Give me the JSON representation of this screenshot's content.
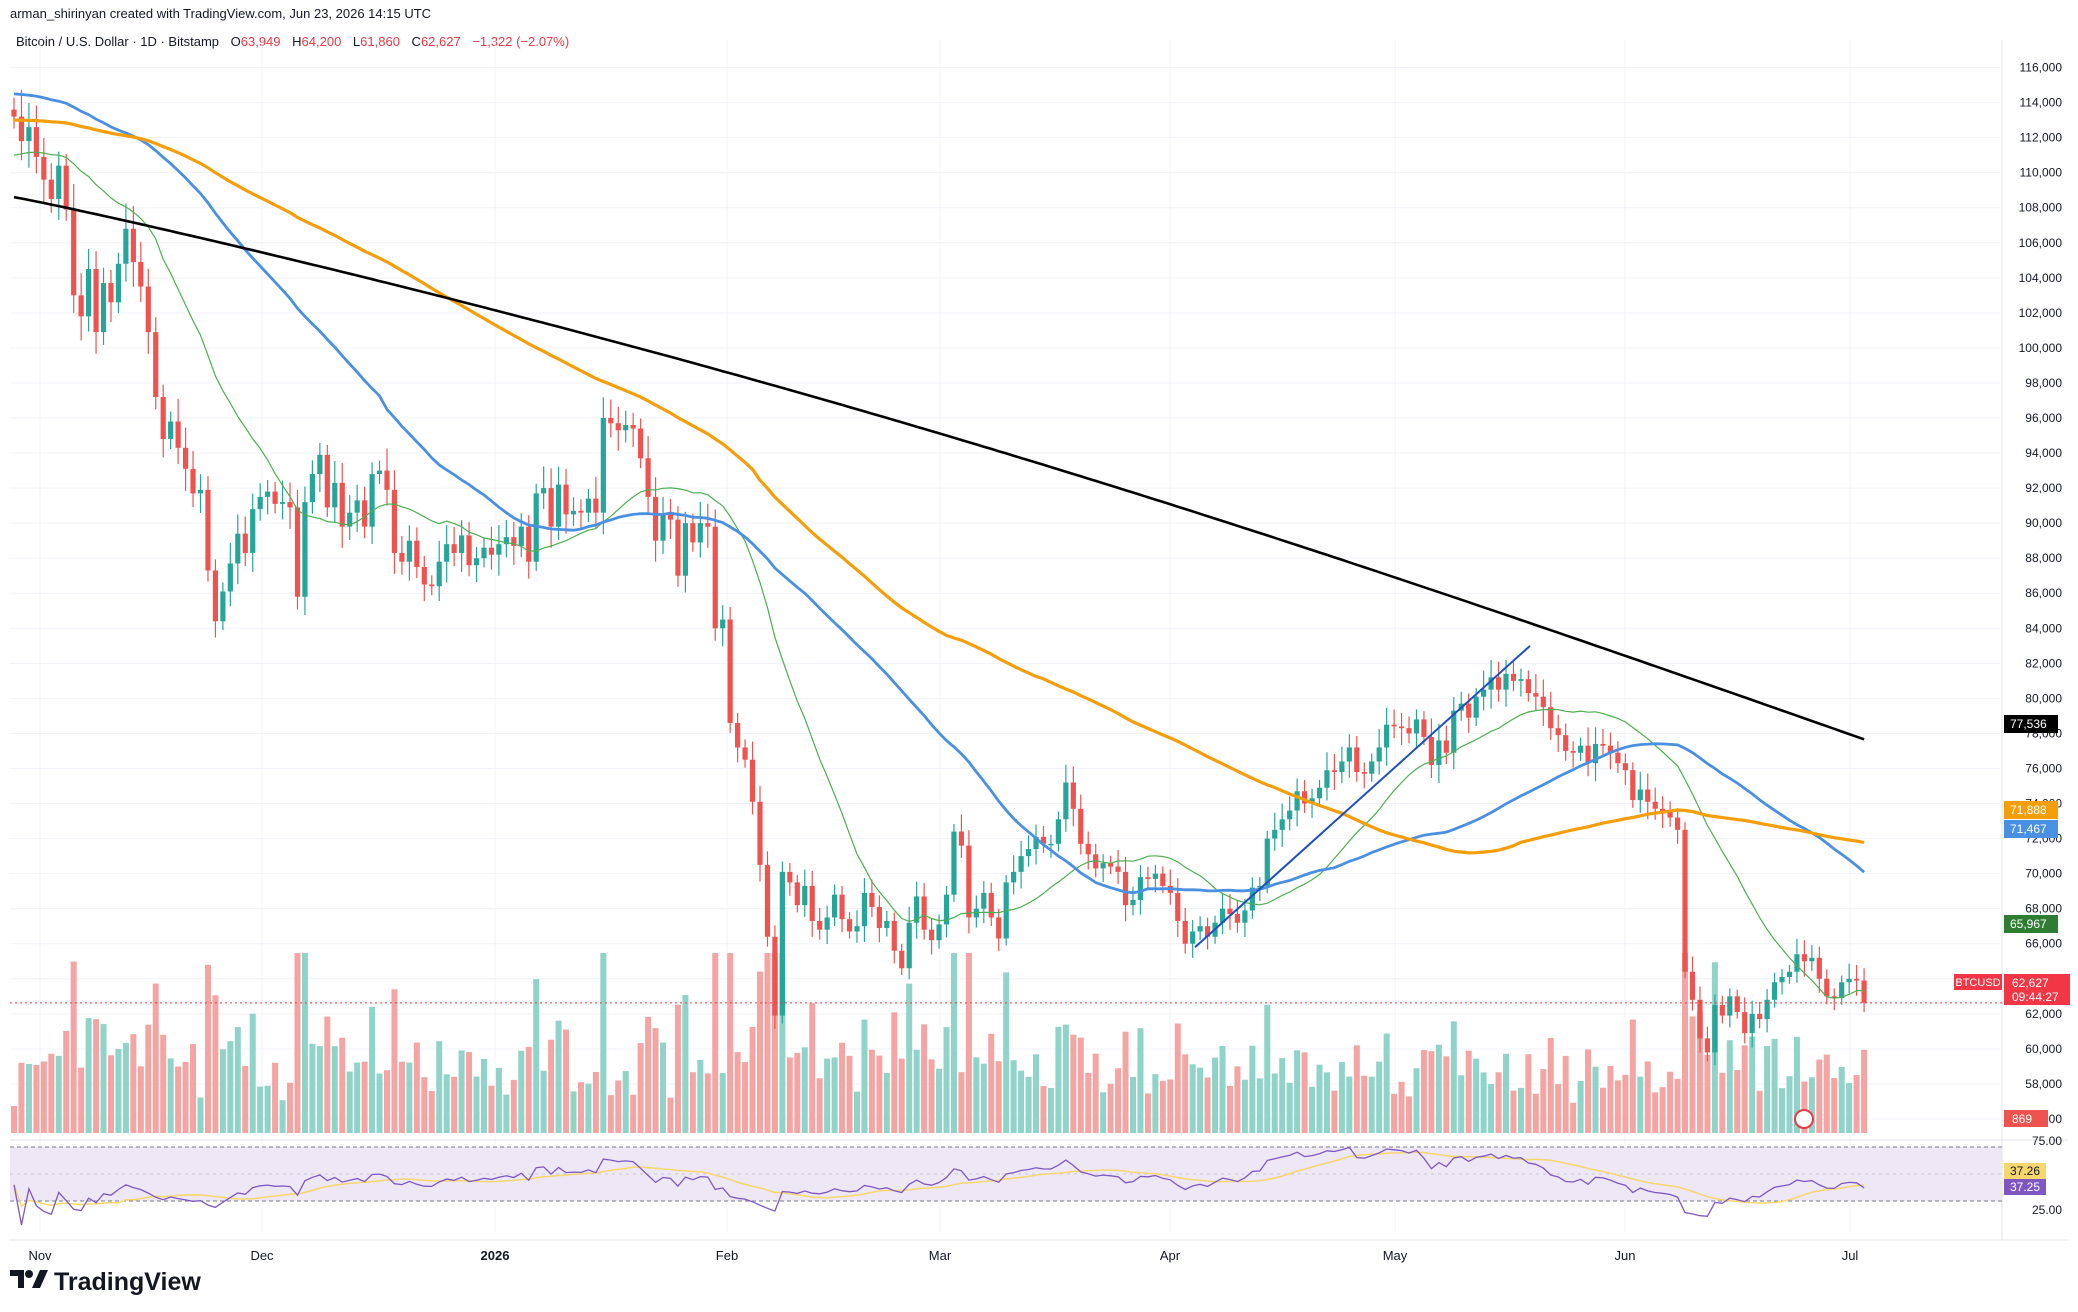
{
  "credit": "arman_shirinyan created with TradingView.com, Jun 23, 2026 14:15 UTC",
  "legend": {
    "symbol": "Bitcoin / U.S. Dollar · 1D · Bitstamp",
    "o_label": "O",
    "o_value": "63,949",
    "h_label": "H",
    "h_value": "64,200",
    "l_label": "L",
    "l_value": "61,860",
    "c_label": "C",
    "c_value": "62,627",
    "change": "−1,322 (−2.07%)"
  },
  "branding": "TradingView",
  "colors": {
    "up": "#26a69a",
    "down": "#ef5350",
    "vol_up": "#8fd3c9",
    "vol_down": "#f4a5a3",
    "ma_fast": "#4caf50",
    "ma_mid": "#4a90e2",
    "ma_slow": "#f59e0b",
    "ma_long": "#000000",
    "trendline": "#1f4fbf",
    "rsi_line": "#7e57c2",
    "rsi_ma": "#f5d76e",
    "rsi_band": "#ede7f6"
  },
  "chart_data": {
    "type": "candlestick",
    "title": "Bitcoin / U.S. Dollar · 1D · Bitstamp",
    "y_axis": {
      "ticks": [
        "116,000",
        "114,000",
        "112,000",
        "110,000",
        "108,000",
        "106,000",
        "104,000",
        "102,000",
        "100,000",
        "98,000",
        "96,000",
        "94,000",
        "92,000",
        "90,000",
        "88,000",
        "86,000",
        "84,000",
        "82,000",
        "80,000",
        "78,000",
        "76,000",
        "74,000",
        "72,000",
        "70,000",
        "68,000",
        "66,000",
        "64,000",
        "62,000",
        "60,000",
        "58,000",
        "56,000"
      ],
      "ylim": [
        54800,
        117000
      ]
    },
    "x_axis": {
      "ticks": [
        "Nov",
        "Dec",
        "2026",
        "Feb",
        "Mar",
        "Apr",
        "May",
        "Jun",
        "Jul"
      ]
    },
    "price_labels": [
      {
        "name": "ma_long",
        "value": "77,536",
        "color": "#000000"
      },
      {
        "name": "ma_slow",
        "value": "71,888",
        "color": "#f59e0b"
      },
      {
        "name": "ma_mid",
        "value": "71,467",
        "color": "#4a90e2"
      },
      {
        "name": "ma_fast",
        "value": "65,967",
        "color": "#2e7d32"
      },
      {
        "name": "last",
        "symbol": "BTCUSD",
        "value": "62,627",
        "countdown": "09:44:27",
        "color": "#f23645"
      },
      {
        "name": "volume",
        "value": "869",
        "color": "#ef5350"
      }
    ],
    "rsi": {
      "levels": [
        "75.00",
        "25.00"
      ],
      "values": [
        "37.26",
        "37.25"
      ]
    },
    "series_close": [
      113200,
      111800,
      112600,
      110900,
      109600,
      108500,
      110400,
      107900,
      103000,
      101800,
      104500,
      100900,
      103700,
      102600,
      104800,
      106800,
      104900,
      103500,
      100900,
      97200,
      94800,
      95800,
      94300,
      93100,
      91700,
      91900,
      87300,
      84400,
      86100,
      87700,
      89400,
      88300,
      90800,
      91500,
      91800,
      91100,
      91200,
      90900,
      85800,
      91200,
      92800,
      93900,
      90900,
      92300,
      89800,
      90600,
      91300,
      89800,
      92800,
      93000,
      91900,
      88300,
      87800,
      89000,
      87500,
      86500,
      86400,
      87800,
      88800,
      88300,
      89300,
      87600,
      88000,
      88600,
      88200,
      88800,
      89200,
      88700,
      89800,
      87800,
      91700,
      92000,
      89800,
      92200,
      90500,
      90700,
      90600,
      91400,
      90600,
      96000,
      95700,
      95300,
      95600,
      95400,
      93700,
      91500,
      89000,
      90500,
      90200,
      87000,
      90000,
      88900,
      90000,
      89800,
      84000,
      84500,
      78600,
      77200,
      76500,
      74100,
      70500,
      66400,
      61900,
      70100,
      69500,
      68200,
      69300,
      67300,
      66800,
      67500,
      68800,
      67400,
      66700,
      67000,
      68900,
      68100,
      66900,
      67300,
      65600,
      64600,
      67200,
      68700,
      66800,
      66200,
      67100,
      68800,
      72400,
      71600,
      67500,
      68000,
      68900,
      67500,
      66300,
      69500,
      70100,
      71000,
      71400,
      72100,
      71700,
      71700,
      73100,
      75200,
      73700,
      71700,
      71100,
      70300,
      70600,
      70400,
      70100,
      68200,
      68500,
      69800,
      69700,
      70000,
      69300,
      68900,
      67300,
      66000,
      66700,
      67000,
      66400,
      67200,
      68000,
      67700,
      67200,
      67900,
      69200,
      69300,
      72000,
      72500,
      73100,
      73600,
      74700,
      74000,
      74300,
      74900,
      75900,
      75800,
      76400,
      77200,
      75800,
      75700,
      76400,
      77200,
      78500,
      78400,
      78300,
      78000,
      78800,
      77800,
      76200,
      77600,
      76900,
      79300,
      79700,
      78900,
      80100,
      80500,
      81200,
      80500,
      81400,
      81000,
      81100,
      80300,
      80100,
      79500,
      78300,
      77900,
      77000,
      76900,
      77300,
      76300,
      77400,
      77300,
      76900,
      76300,
      75900,
      74200,
      74800,
      74100,
      73700,
      73500,
      73200,
      72500,
      64400,
      62800,
      60600,
      59800,
      62500,
      61900,
      63000,
      62100,
      60900,
      62000,
      61700,
      62800,
      63800,
      64100,
      64400,
      65400,
      65000,
      65200,
      64000,
      63000,
      62900,
      63800,
      64000,
      63900,
      62627
    ],
    "volume_label": "869",
    "events": {
      "trendline": "rising line from early Apr low to mid-May high"
    }
  }
}
